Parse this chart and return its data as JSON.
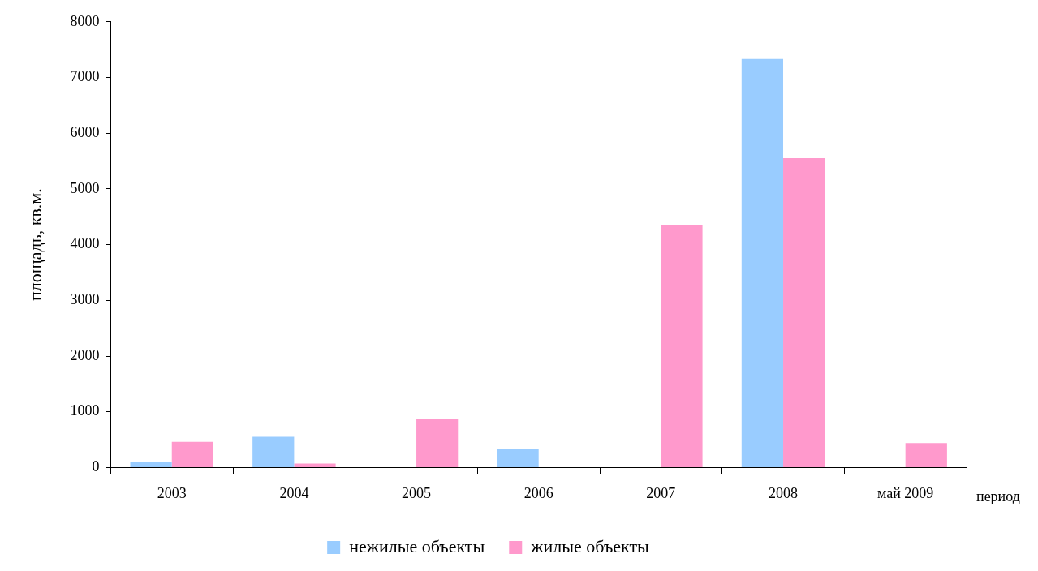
{
  "chart_data": {
    "type": "bar",
    "xlabel": "период",
    "ylabel": "площадь, кв.м.",
    "categories": [
      "2003",
      "2004",
      "2005",
      "2006",
      "2007",
      "2008",
      "май 2009"
    ],
    "series": [
      {
        "name": "нежилые объекты",
        "color": "#99ccff",
        "values": [
          100,
          550,
          null,
          340,
          null,
          7330,
          null
        ]
      },
      {
        "name": "жилые объекты",
        "color": "#ff99cc",
        "values": [
          460,
          70,
          880,
          null,
          4350,
          5550,
          440
        ]
      }
    ],
    "ylim": [
      0,
      8000
    ],
    "yticks": [
      0,
      1000,
      2000,
      3000,
      4000,
      5000,
      6000,
      7000,
      8000
    ],
    "grid": false,
    "legend": "bottom"
  }
}
